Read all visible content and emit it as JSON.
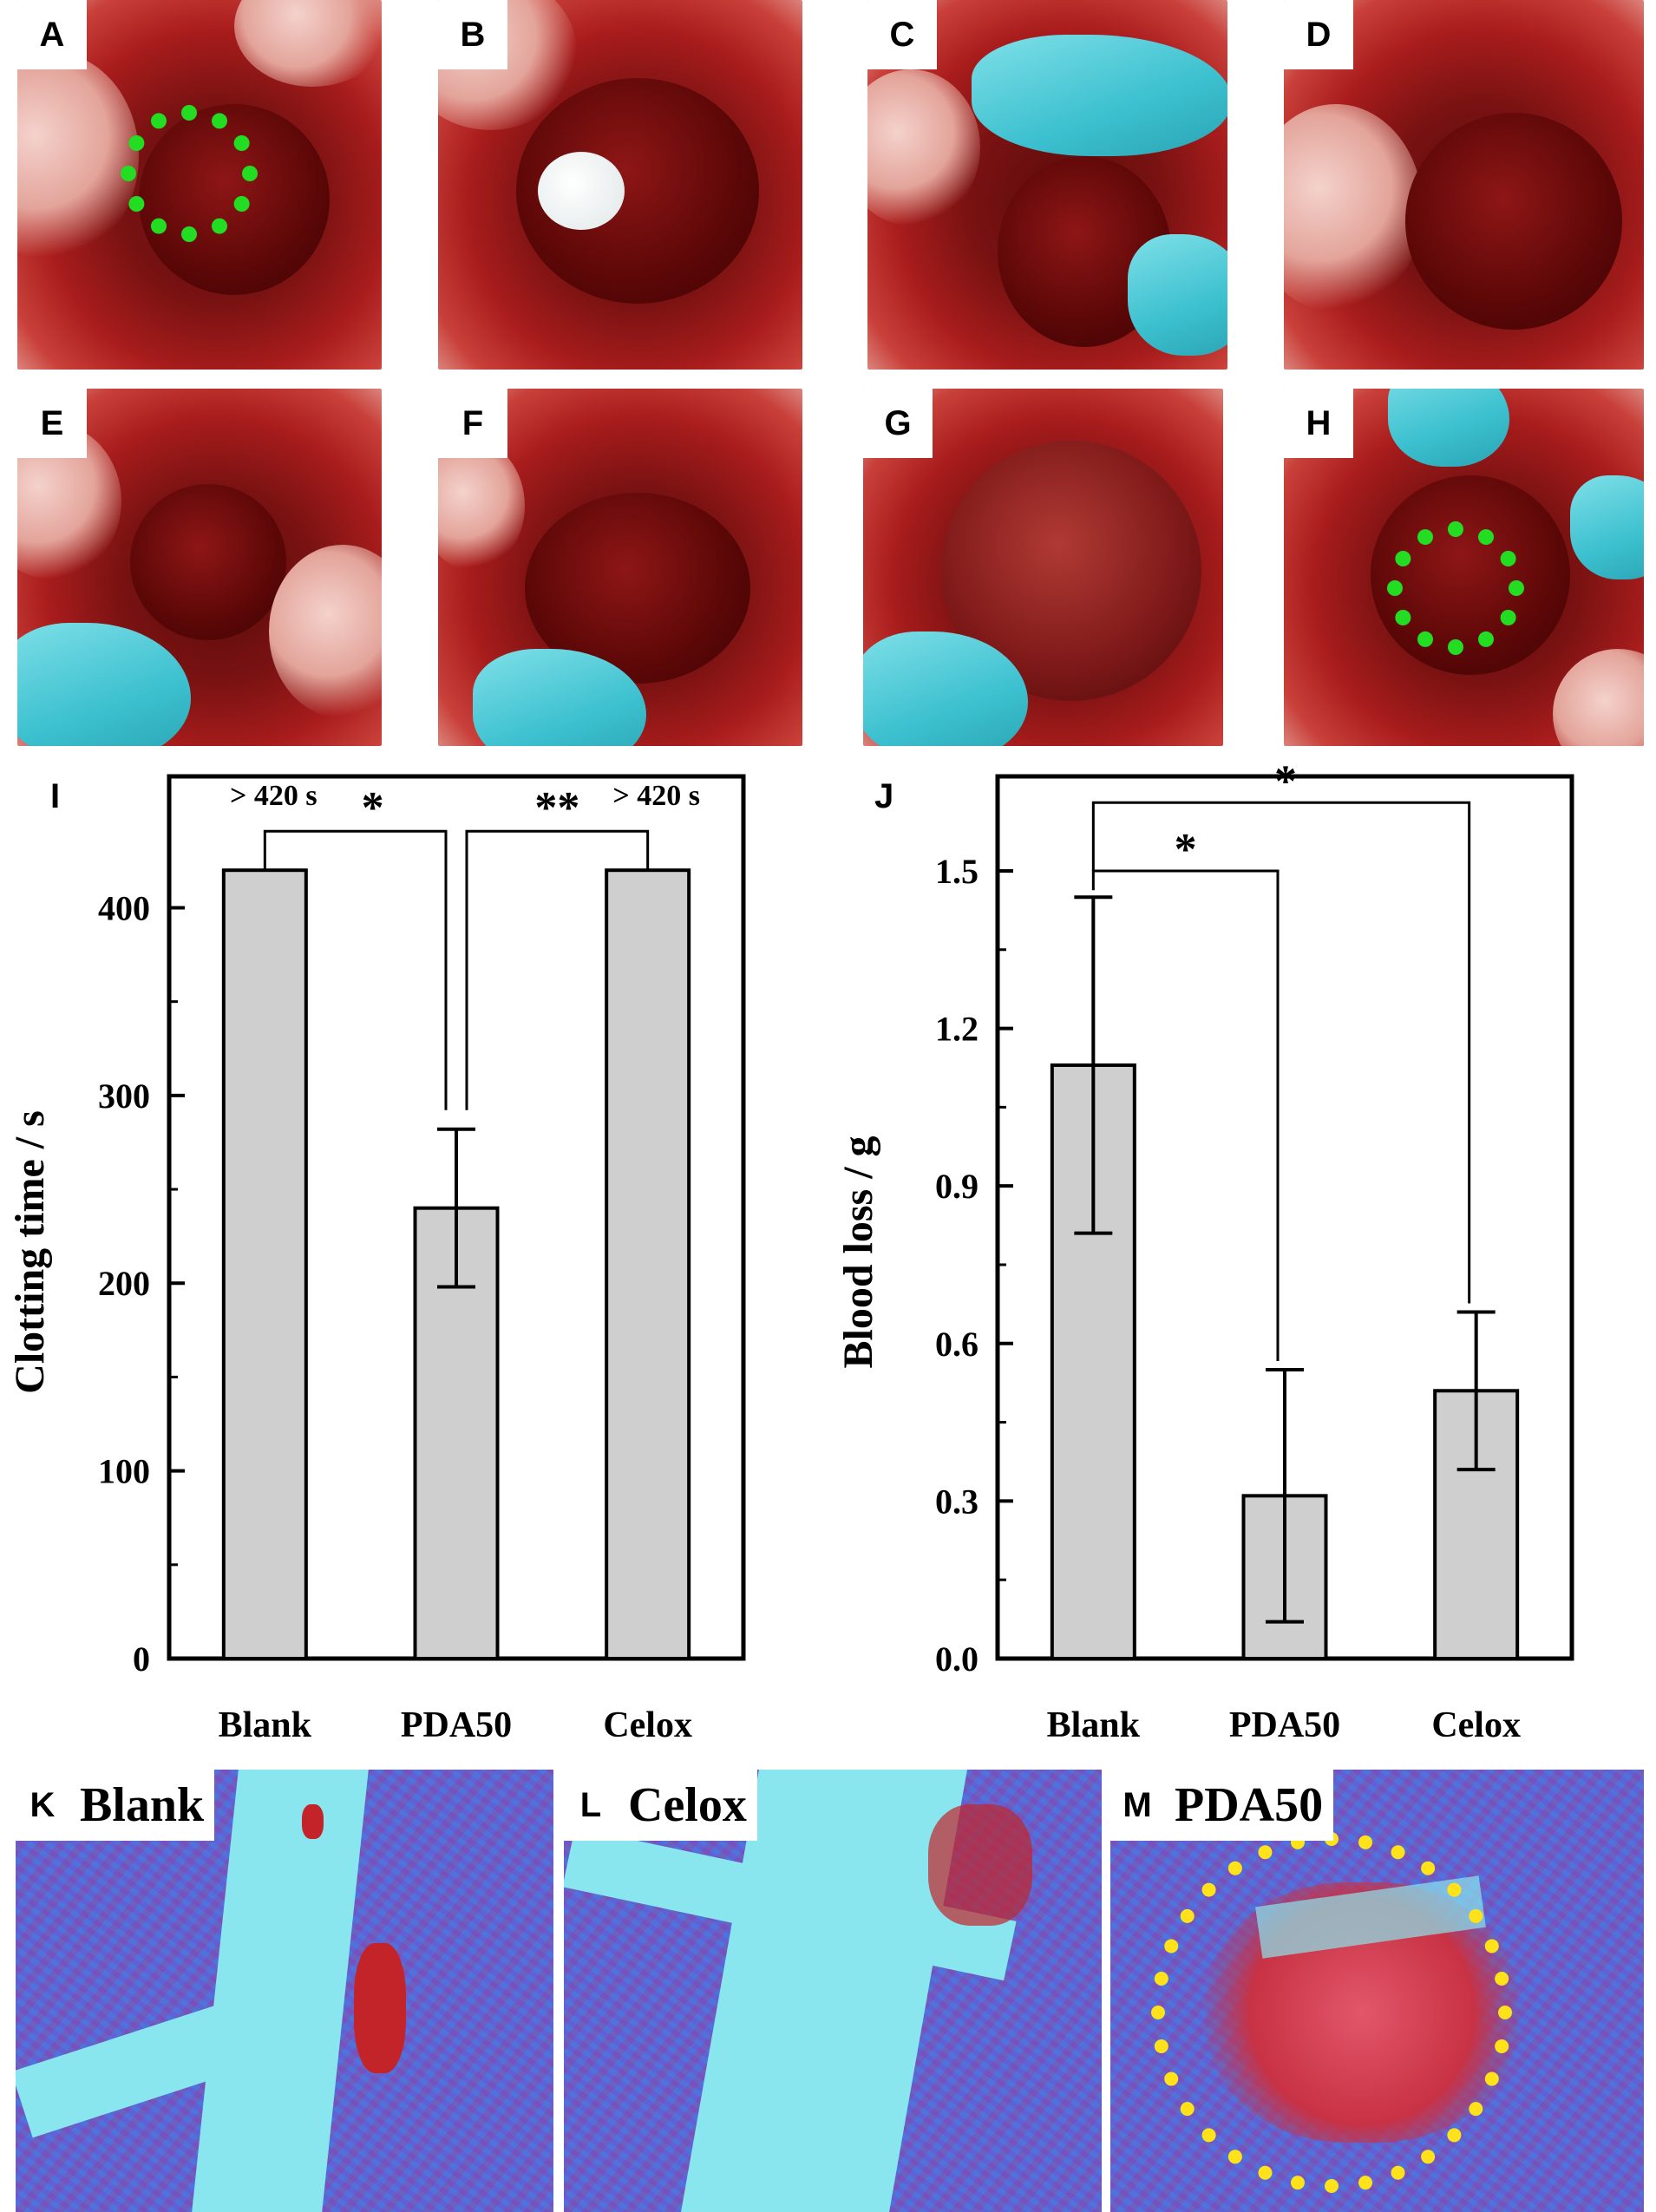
{
  "photo_panels": {
    "A": "A",
    "B": "B",
    "C": "C",
    "D": "D",
    "E": "E",
    "F": "F",
    "G": "G",
    "H": "H"
  },
  "histology": {
    "K": {
      "letter": "K",
      "title": "Blank"
    },
    "L": {
      "letter": "L",
      "title": "Celox"
    },
    "M": {
      "letter": "M",
      "title": "PDA50"
    }
  },
  "colors": {
    "bar_fill": "#cfcfcf",
    "marker_green": "#22dd22",
    "marker_yellow": "#ffe21a"
  },
  "chart_data": [
    {
      "panel": "I",
      "type": "bar",
      "categories": [
        "Blank",
        "PDA50",
        "Celox"
      ],
      "values": [
        420,
        240,
        420
      ],
      "errors": [
        null,
        42,
        null
      ],
      "ylabel": "Clotting time / s",
      "ylim": [
        0,
        470
      ],
      "yticks": [
        0,
        100,
        200,
        300,
        400
      ],
      "ytick_labels": [
        "0",
        "100",
        "200",
        "300",
        "400"
      ],
      "annotations": {
        "blank_label": "> 420 s",
        "celox_label": "> 420 s"
      },
      "significance": [
        {
          "from": "Blank",
          "to": "PDA50",
          "label": "*"
        },
        {
          "from": "PDA50",
          "to": "Celox",
          "label": "**"
        }
      ]
    },
    {
      "panel": "J",
      "type": "bar",
      "categories": [
        "Blank",
        "PDA50",
        "Celox"
      ],
      "values": [
        1.13,
        0.31,
        0.51
      ],
      "errors": [
        0.32,
        0.24,
        0.15
      ],
      "ylabel": "Blood loss / g",
      "ylim": [
        0,
        1.68
      ],
      "yticks": [
        0,
        0.3,
        0.6,
        0.9,
        1.2,
        1.5
      ],
      "ytick_labels": [
        "0.0",
        "0.3",
        "0.6",
        "0.9",
        "1.2",
        "1.5"
      ],
      "significance": [
        {
          "from": "Blank",
          "to": "PDA50",
          "label": "*"
        },
        {
          "from": "Blank",
          "to": "Celox",
          "label": "*"
        }
      ]
    }
  ]
}
